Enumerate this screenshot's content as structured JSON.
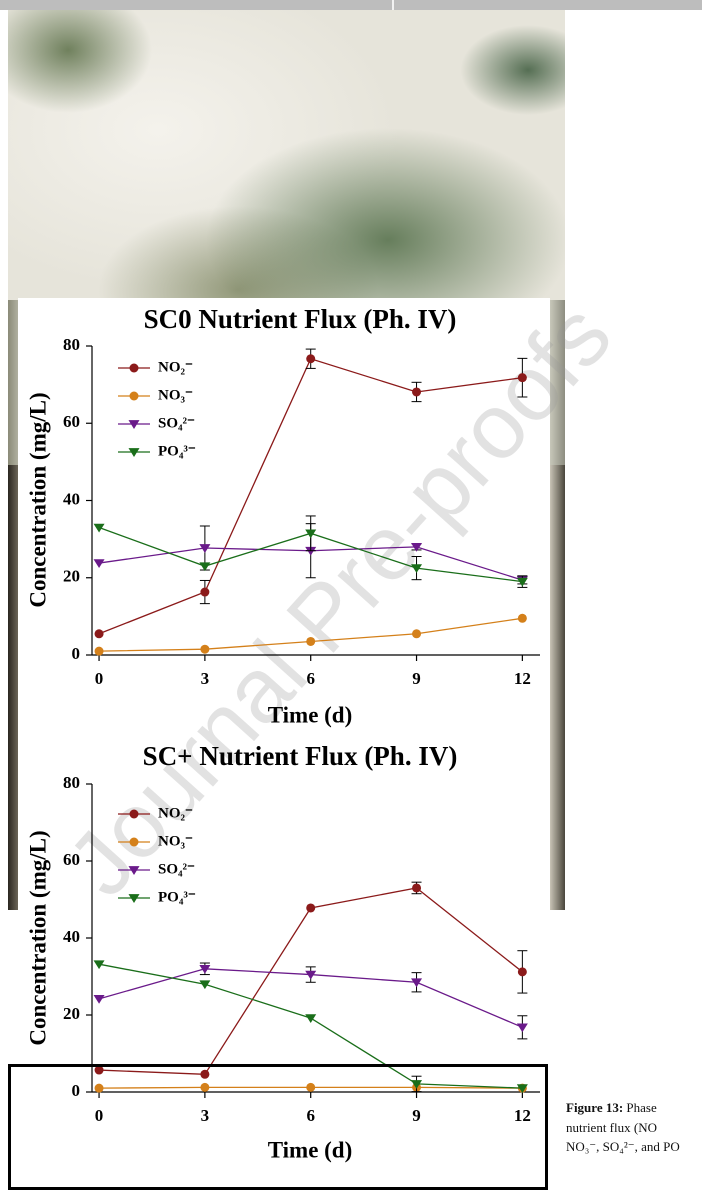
{
  "chart_data": [
    {
      "type": "line",
      "title": "SC0 Nutrient Flux (Ph. IV)",
      "x_label": "Time (d)",
      "y_label": "Concentration (mg/L)",
      "x": [
        0,
        3,
        6,
        9,
        12
      ],
      "xlim": [
        -0.2,
        12.5
      ],
      "xticks": [
        0,
        3,
        6,
        9,
        12
      ],
      "ylim": [
        0,
        80
      ],
      "yticks": [
        0,
        20,
        40,
        60,
        80
      ],
      "legend": "upper left",
      "series": [
        {
          "name": "NO₂⁻",
          "color": "#8b1a1a",
          "marker": "circle",
          "values": [
            5.5,
            16.3,
            76.7,
            68.1,
            71.8
          ],
          "errors": [
            null,
            3,
            2.5,
            2.5,
            5
          ]
        },
        {
          "name": "NO₃⁻",
          "color": "#d4801a",
          "marker": "circle",
          "values": [
            1,
            1.5,
            3.5,
            5.5,
            9.5
          ],
          "errors": [
            null,
            null,
            null,
            null,
            null
          ]
        },
        {
          "name": "SO₄²⁻",
          "color": "#6a1a8a",
          "marker": "triangle-down",
          "values": [
            23.8,
            27.7,
            27,
            28,
            19.4
          ],
          "errors": [
            null,
            5.7,
            7,
            0.8,
            1
          ]
        },
        {
          "name": "PO₄³⁻",
          "color": "#1a6e1a",
          "marker": "triangle-down",
          "values": [
            33,
            23,
            31.5,
            22.5,
            19
          ],
          "errors": [
            null,
            null,
            4.5,
            3,
            1.5
          ]
        }
      ]
    },
    {
      "type": "line",
      "title": "SC+ Nutrient Flux (Ph. IV)",
      "x_label": "Time (d)",
      "y_label": "Concentration (mg/L)",
      "x": [
        0,
        3,
        6,
        9,
        12
      ],
      "xlim": [
        -0.2,
        12.5
      ],
      "xticks": [
        0,
        3,
        6,
        9,
        12
      ],
      "ylim": [
        0,
        80
      ],
      "yticks": [
        0,
        20,
        40,
        60,
        80
      ],
      "legend": "upper left",
      "series": [
        {
          "name": "NO₂⁻",
          "color": "#8b1a1a",
          "marker": "circle",
          "values": [
            5.7,
            4.6,
            47.8,
            53,
            31.2
          ],
          "errors": [
            null,
            null,
            null,
            1.5,
            5.5
          ]
        },
        {
          "name": "NO₃⁻",
          "color": "#d4801a",
          "marker": "circle",
          "values": [
            1,
            1.2,
            1.2,
            1.2,
            1
          ],
          "errors": [
            null,
            null,
            null,
            null,
            null
          ]
        },
        {
          "name": "SO₄²⁻",
          "color": "#6a1a8a",
          "marker": "triangle-down",
          "values": [
            24.2,
            32,
            30.5,
            28.5,
            16.8
          ],
          "errors": [
            null,
            1.5,
            2,
            2.5,
            3
          ]
        },
        {
          "name": "PO₄³⁻",
          "color": "#1a6e1a",
          "marker": "triangle-down",
          "values": [
            33.2,
            28,
            19.2,
            2.1,
            1
          ],
          "errors": [
            null,
            null,
            null,
            2,
            null
          ]
        }
      ]
    }
  ],
  "caption": {
    "label": "Figure 13:",
    "lines": [
      " Phase",
      "nutrient flux (NO",
      "NO₃⁻, SO₄²⁻, and PO"
    ]
  },
  "watermark": "Journal Pre-proofs"
}
